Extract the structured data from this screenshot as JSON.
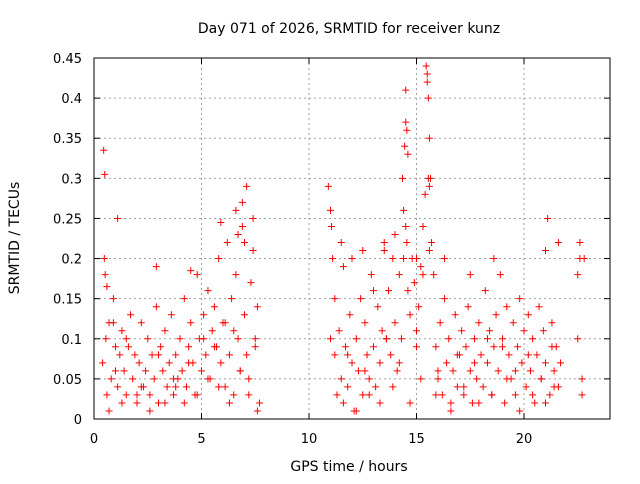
{
  "chart_data": {
    "type": "scatter",
    "title": "Day 071 of 2026, SRMTID for receiver kunz",
    "xlabel": "GPS time / hours",
    "ylabel": "SRMTID / TECUs",
    "xlim": [
      0,
      24
    ],
    "ylim": [
      0,
      0.45
    ],
    "xticks": [
      0,
      5,
      10,
      15,
      20
    ],
    "xtick_labels": [
      "0",
      "5",
      "10",
      "15",
      "20"
    ],
    "yticks": [
      0,
      0.05,
      0.1,
      0.15,
      0.2,
      0.25,
      0.3,
      0.35,
      0.4,
      0.45
    ],
    "ytick_labels": [
      "0",
      "0.05",
      "0.1",
      "0.15",
      "0.2",
      "0.25",
      "0.3",
      "0.35",
      "0.4",
      "0.45"
    ],
    "grid": true,
    "marker": "+",
    "color": "#ff0000",
    "series": [
      {
        "name": "SRMTID",
        "x": [
          0.4,
          0.45,
          0.5,
          0.55,
          0.6,
          0.7,
          0.8,
          0.9,
          1.0,
          1.1,
          1.2,
          1.3,
          1.4,
          1.5,
          1.6,
          1.7,
          1.8,
          1.9,
          2.0,
          2.1,
          2.2,
          2.3,
          2.4,
          2.5,
          2.6,
          2.7,
          2.8,
          2.9,
          3.0,
          3.1,
          3.2,
          3.3,
          3.4,
          3.5,
          3.6,
          3.7,
          3.8,
          3.9,
          4.0,
          4.1,
          4.2,
          4.3,
          4.4,
          4.5,
          4.6,
          4.7,
          4.8,
          4.9,
          5.0,
          5.1,
          5.2,
          5.3,
          5.4,
          5.5,
          5.6,
          5.7,
          5.8,
          5.9,
          6.0,
          6.1,
          6.2,
          6.3,
          6.4,
          6.5,
          6.6,
          6.7,
          6.8,
          6.9,
          7.0,
          7.1,
          7.2,
          7.3,
          7.4,
          7.5,
          7.6,
          7.7,
          0.48,
          0.52,
          0.6,
          0.9,
          1.1,
          2.9,
          4.5,
          5.9,
          6.6,
          6.7,
          6.9,
          7.0,
          7.4,
          0.7,
          1.3,
          2.0,
          2.6,
          3.3,
          3.8,
          4.2,
          4.8,
          5.3,
          5.8,
          6.3,
          6.8,
          7.2,
          7.6,
          1.0,
          1.5,
          2.2,
          3.0,
          3.7,
          4.4,
          5.1,
          5.6,
          6.1,
          6.5,
          7.1,
          7.5,
          10.9,
          11.0,
          11.05,
          11.1,
          11.2,
          11.3,
          11.4,
          11.5,
          11.6,
          11.7,
          11.8,
          11.9,
          12.0,
          12.1,
          12.2,
          12.3,
          12.4,
          12.5,
          12.6,
          12.7,
          12.8,
          12.9,
          13.0,
          13.1,
          13.2,
          13.3,
          13.4,
          13.5,
          13.6,
          13.7,
          13.8,
          13.9,
          14.0,
          14.1,
          14.2,
          14.3,
          14.35,
          14.4,
          14.45,
          14.5,
          14.55,
          14.6,
          14.7,
          14.8,
          14.9,
          15.0,
          15.1,
          15.2,
          15.3,
          15.4,
          15.45,
          15.5,
          15.55,
          15.6,
          15.65,
          15.7,
          15.8,
          15.9,
          16.0,
          16.1,
          16.2,
          16.3,
          16.4,
          16.5,
          16.6,
          16.7,
          16.8,
          16.9,
          17.0,
          17.1,
          17.2,
          17.3,
          17.4,
          17.5,
          17.6,
          17.7,
          17.8,
          17.9,
          18.0,
          18.1,
          18.2,
          18.3,
          18.4,
          18.5,
          18.6,
          18.7,
          18.8,
          18.9,
          19.0,
          19.1,
          19.2,
          19.3,
          19.4,
          19.5,
          19.6,
          19.7,
          19.8,
          19.9,
          20.0,
          20.1,
          20.2,
          20.3,
          20.4,
          20.5,
          20.6,
          20.7,
          20.8,
          20.9,
          21.0,
          21.1,
          21.2,
          21.3,
          21.4,
          21.5,
          21.6,
          21.7,
          22.5,
          22.6,
          22.7,
          22.8,
          11.0,
          11.2,
          11.6,
          12.0,
          12.5,
          13.0,
          13.5,
          14.0,
          14.4,
          14.5,
          14.5,
          14.55,
          14.6,
          15.0,
          15.3,
          15.5,
          15.55,
          15.6,
          15.6,
          16.3,
          17.5,
          18.6,
          21.0,
          21.6,
          22.6,
          11.5,
          12.2,
          12.8,
          13.3,
          13.9,
          14.7,
          15.2,
          15.9,
          16.6,
          17.2,
          17.9,
          18.5,
          19.2,
          19.8,
          20.4,
          21.0,
          21.4,
          22.7,
          11.8,
          12.6,
          13.6,
          14.2,
          15.0,
          16.0,
          16.9,
          17.7,
          18.3,
          19.0,
          19.6,
          20.2,
          20.8,
          21.3,
          22.5
        ],
        "y": [
          0.07,
          0.335,
          0.305,
          0.1,
          0.03,
          0.12,
          0.05,
          0.15,
          0.09,
          0.04,
          0.08,
          0.11,
          0.06,
          0.03,
          0.09,
          0.13,
          0.05,
          0.08,
          0.02,
          0.07,
          0.12,
          0.04,
          0.06,
          0.1,
          0.03,
          0.08,
          0.05,
          0.14,
          0.02,
          0.09,
          0.06,
          0.11,
          0.04,
          0.07,
          0.13,
          0.03,
          0.08,
          0.05,
          0.1,
          0.06,
          0.15,
          0.04,
          0.09,
          0.12,
          0.07,
          0.03,
          0.18,
          0.1,
          0.06,
          0.13,
          0.08,
          0.16,
          0.05,
          0.11,
          0.14,
          0.09,
          0.2,
          0.07,
          0.12,
          0.04,
          0.22,
          0.08,
          0.15,
          0.03,
          0.18,
          0.1,
          0.06,
          0.24,
          0.13,
          0.29,
          0.05,
          0.17,
          0.21,
          0.09,
          0.14,
          0.02,
          0.2,
          0.18,
          0.165,
          0.12,
          0.25,
          0.19,
          0.185,
          0.245,
          0.26,
          0.23,
          0.27,
          0.22,
          0.25,
          0.01,
          0.02,
          0.03,
          0.01,
          0.02,
          0.04,
          0.02,
          0.03,
          0.05,
          0.04,
          0.02,
          0.06,
          0.03,
          0.01,
          0.06,
          0.1,
          0.04,
          0.08,
          0.05,
          0.07,
          0.1,
          0.09,
          0.12,
          0.11,
          0.08,
          0.1,
          0.29,
          0.26,
          0.24,
          0.2,
          0.08,
          0.03,
          0.11,
          0.05,
          0.02,
          0.09,
          0.04,
          0.13,
          0.07,
          0.01,
          0.1,
          0.06,
          0.15,
          0.03,
          0.12,
          0.08,
          0.05,
          0.18,
          0.09,
          0.04,
          0.14,
          0.07,
          0.11,
          0.22,
          0.1,
          0.16,
          0.08,
          0.2,
          0.12,
          0.06,
          0.18,
          0.1,
          0.3,
          0.26,
          0.34,
          0.37,
          0.22,
          0.16,
          0.13,
          0.2,
          0.17,
          0.11,
          0.14,
          0.19,
          0.24,
          0.28,
          0.44,
          0.42,
          0.4,
          0.35,
          0.3,
          0.22,
          0.18,
          0.09,
          0.05,
          0.12,
          0.03,
          0.15,
          0.07,
          0.1,
          0.02,
          0.06,
          0.13,
          0.04,
          0.08,
          0.11,
          0.03,
          0.09,
          0.14,
          0.06,
          0.02,
          0.1,
          0.05,
          0.12,
          0.08,
          0.04,
          0.16,
          0.07,
          0.11,
          0.03,
          0.09,
          0.13,
          0.06,
          0.18,
          0.1,
          0.02,
          0.14,
          0.08,
          0.05,
          0.12,
          0.03,
          0.09,
          0.15,
          0.07,
          0.11,
          0.04,
          0.13,
          0.06,
          0.1,
          0.02,
          0.08,
          0.14,
          0.05,
          0.11,
          0.07,
          0.25,
          0.03,
          0.12,
          0.06,
          0.09,
          0.04,
          0.07,
          0.18,
          0.22,
          0.05,
          0.2,
          0.1,
          0.15,
          0.19,
          0.2,
          0.21,
          0.16,
          0.21,
          0.23,
          0.2,
          0.24,
          0.41,
          0.36,
          0.33,
          0.2,
          0.18,
          0.43,
          0.3,
          0.29,
          0.21,
          0.2,
          0.18,
          0.2,
          0.21,
          0.22,
          0.2,
          0.22,
          0.01,
          0.03,
          0.02,
          0.04,
          0.02,
          0.05,
          0.03,
          0.01,
          0.04,
          0.02,
          0.03,
          0.05,
          0.01,
          0.03,
          0.02,
          0.04,
          0.03,
          0.08,
          0.06,
          0.1,
          0.07,
          0.09,
          0.06,
          0.08,
          0.07,
          0.1,
          0.09,
          0.06,
          0.08,
          0.05,
          0.09,
          0.1
        ]
      }
    ]
  }
}
